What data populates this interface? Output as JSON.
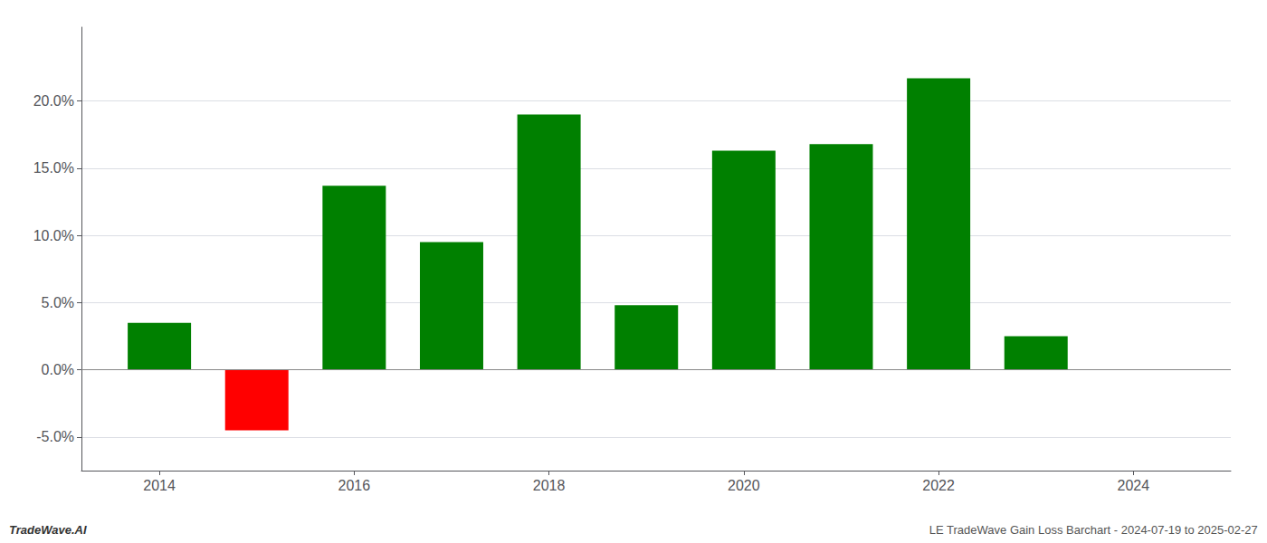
{
  "chart_data": {
    "type": "bar",
    "x": [
      2014,
      2015,
      2016,
      2017,
      2018,
      2019,
      2020,
      2021,
      2022,
      2023
    ],
    "values": [
      0.035,
      -0.045,
      0.137,
      0.095,
      0.19,
      0.048,
      0.163,
      0.168,
      0.217,
      0.025
    ],
    "colors": [
      "#008000",
      "#ff0000",
      "#008000",
      "#008000",
      "#008000",
      "#008000",
      "#008000",
      "#008000",
      "#008000",
      "#008000"
    ],
    "xlim": [
      2013.2,
      2025.0
    ],
    "xticks": [
      2014,
      2016,
      2018,
      2020,
      2022,
      2024
    ],
    "ylim": [
      -0.075,
      0.255
    ],
    "yticks": [
      {
        "value": -0.05,
        "label": "-5.0%"
      },
      {
        "value": 0.0,
        "label": "0.0%"
      },
      {
        "value": 0.05,
        "label": "5.0%"
      },
      {
        "value": 0.1,
        "label": "10.0%"
      },
      {
        "value": 0.15,
        "label": "15.0%"
      },
      {
        "value": 0.2,
        "label": "20.0%"
      }
    ],
    "grid": true,
    "annotations": [
      "TradeWave.AI",
      "LE TradeWave Gain Loss Barchart - 2024-07-19 to 2025-02-27"
    ]
  }
}
